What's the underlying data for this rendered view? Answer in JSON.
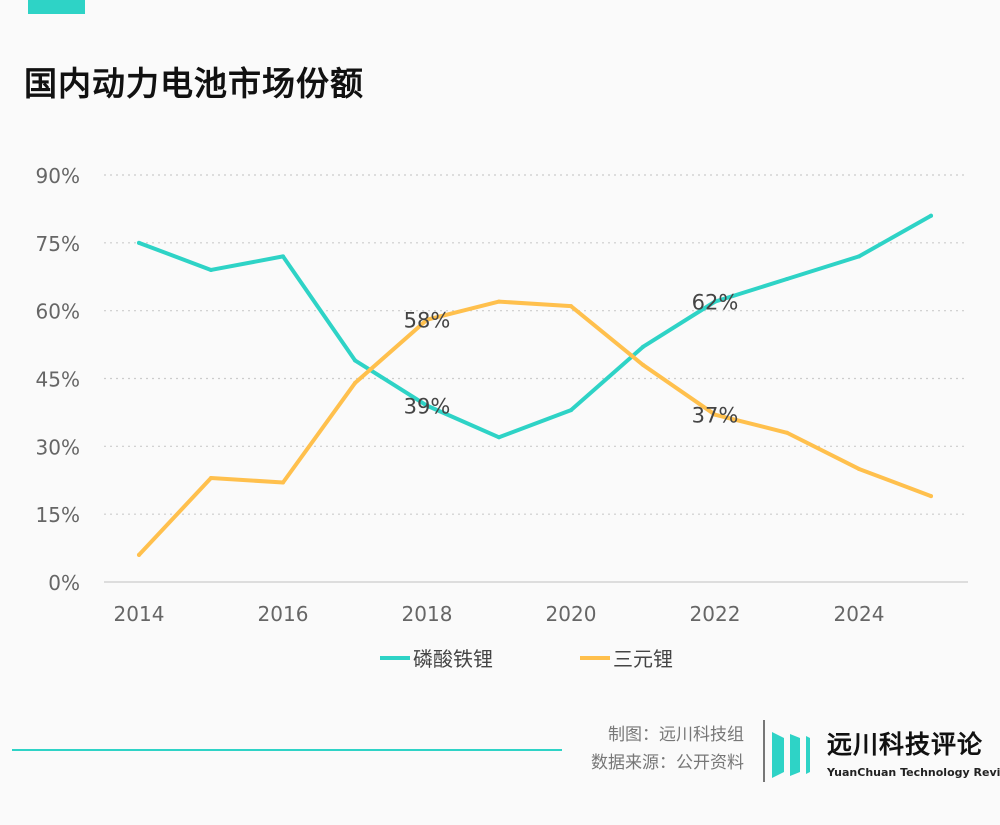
{
  "title": "国内动力电池市场份额",
  "credits": {
    "made_by": "制图：远川科技组",
    "source": "数据来源：公开资料"
  },
  "logo": {
    "cn": "远川科技评论",
    "en": "YuanChuan Technology Review"
  },
  "colors": {
    "accent": "#2ed3c6",
    "lfp": "#2ed3c6",
    "ncm": "#ffc04d"
  },
  "chart_data": {
    "type": "line",
    "x": [
      2014,
      2015,
      2016,
      2017,
      2018,
      2019,
      2020,
      2021,
      2022,
      2023,
      2024,
      2025
    ],
    "xticks": [
      "2014",
      "2016",
      "2018",
      "2020",
      "2022",
      "2024"
    ],
    "yticks": [
      "0%",
      "15%",
      "30%",
      "45%",
      "60%",
      "75%",
      "90%"
    ],
    "ylim": [
      0,
      90
    ],
    "grid": true,
    "legend_position": "bottom",
    "series": [
      {
        "name": "磷酸铁锂",
        "color": "#2ed3c6",
        "values": [
          75,
          69,
          72,
          49,
          39,
          32,
          38,
          52,
          62,
          67,
          72,
          81
        ]
      },
      {
        "name": "三元锂",
        "color": "#ffc04d",
        "values": [
          6,
          23,
          22,
          44,
          58,
          62,
          61,
          48,
          37,
          33,
          25,
          19
        ]
      }
    ],
    "annotations": [
      {
        "x": 2018,
        "y": 58,
        "text": "58%"
      },
      {
        "x": 2018,
        "y": 39,
        "text": "39%"
      },
      {
        "x": 2022,
        "y": 62,
        "text": "62%"
      },
      {
        "x": 2022,
        "y": 37,
        "text": "37%"
      }
    ]
  }
}
